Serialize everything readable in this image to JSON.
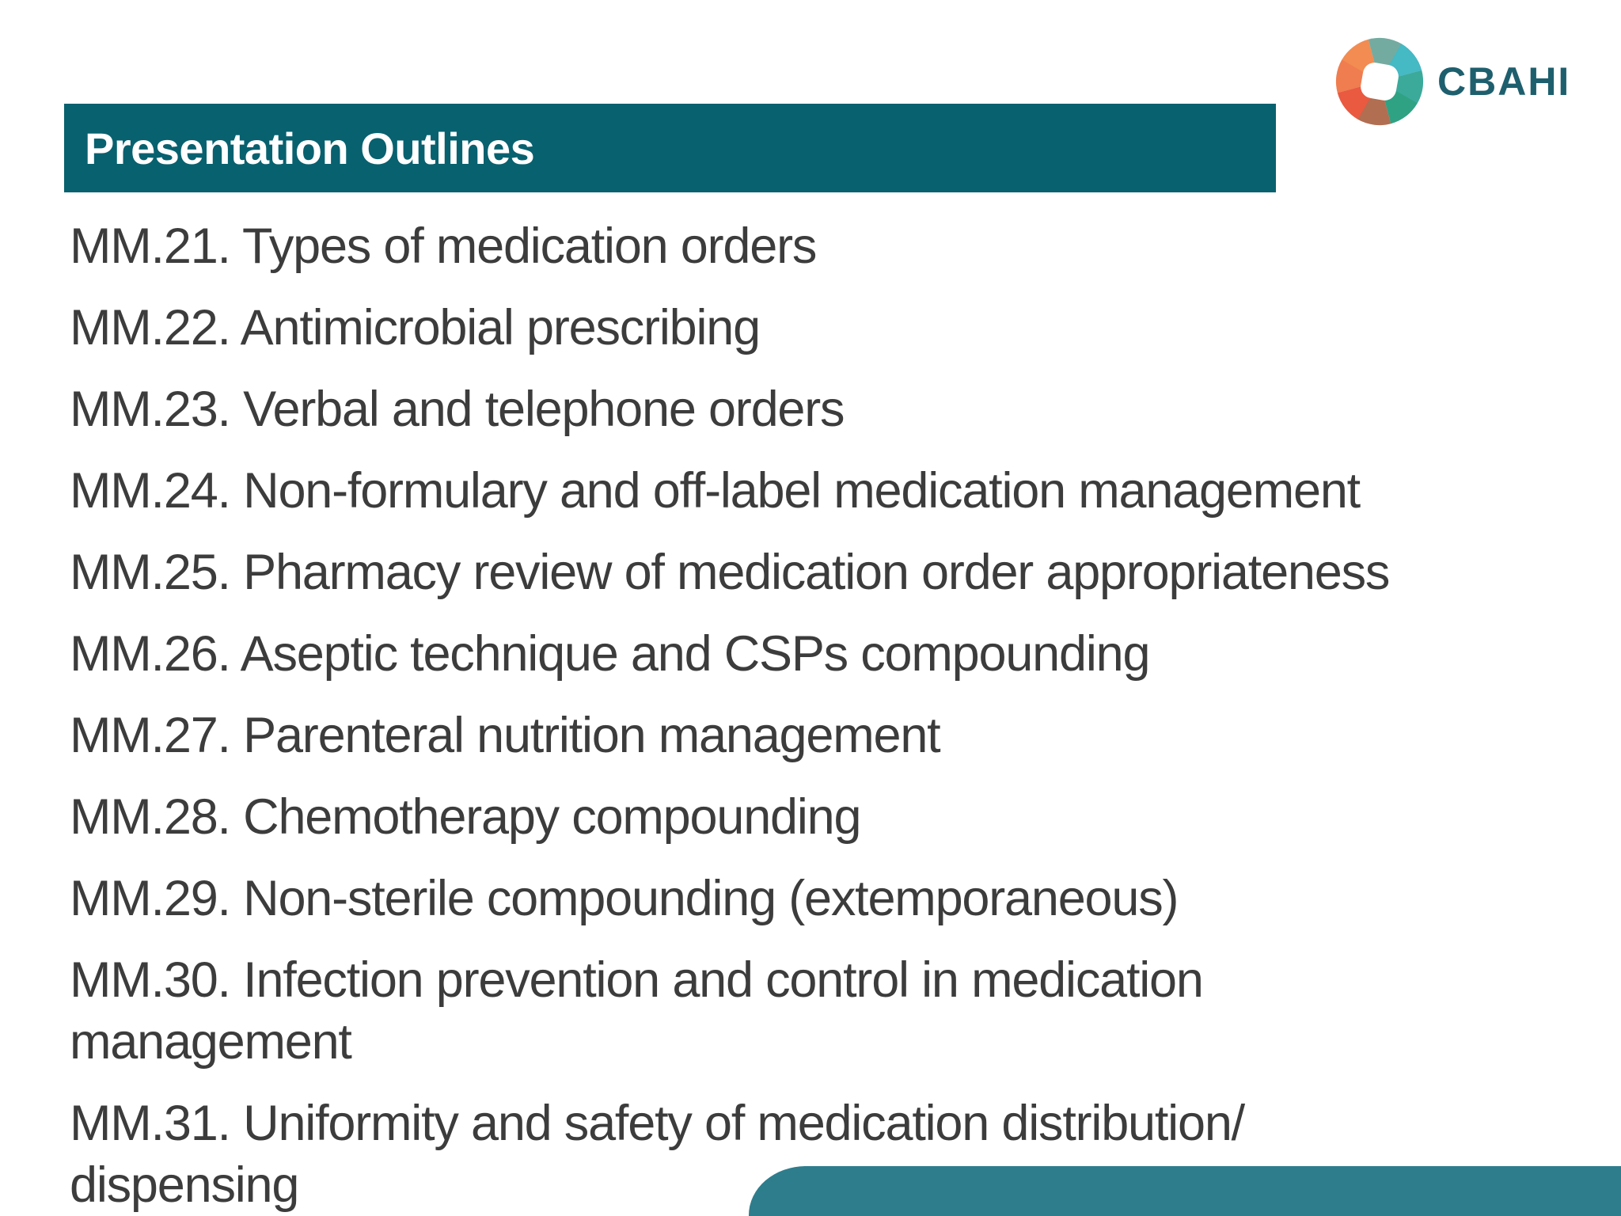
{
  "slide": {
    "background": "#ffffff",
    "colors": {
      "teal_dark": "#08616f",
      "teal_light": "#2e7d8c",
      "text": "#3c3c3c",
      "logo_text": "#1e5f6e",
      "logo_orange": "#f08045",
      "logo_red": "#e7492f",
      "logo_cyan": "#2fb0bd",
      "logo_green": "#1f997c"
    }
  },
  "logo": {
    "text": "CBAHI",
    "icon": "cbahi-ring-logo"
  },
  "header": {
    "title": "Presentation Outlines"
  },
  "outline": {
    "items": [
      {
        "lines": [
          "MM.21. Types of medication orders"
        ]
      },
      {
        "lines": [
          "MM.22. Antimicrobial prescribing"
        ]
      },
      {
        "lines": [
          "MM.23. Verbal and telephone orders"
        ]
      },
      {
        "lines": [
          "MM.24. Non-formulary and off-label medication management"
        ]
      },
      {
        "lines": [
          "MM.25. Pharmacy review of medication order appropriateness"
        ]
      },
      {
        "lines": [
          "MM.26. Aseptic technique and CSPs compounding"
        ]
      },
      {
        "lines": [
          "MM.27. Parenteral nutrition management"
        ]
      },
      {
        "lines": [
          "MM.28. Chemotherapy compounding"
        ]
      },
      {
        "lines": [
          "MM.29. Non-sterile compounding (extemporaneous)"
        ]
      },
      {
        "lines": [
          "MM.30. Infection prevention and control in medication",
          "management"
        ]
      },
      {
        "lines": [
          "MM.31. Uniformity and safety of medication distribution/",
          "dispensing"
        ]
      }
    ]
  }
}
